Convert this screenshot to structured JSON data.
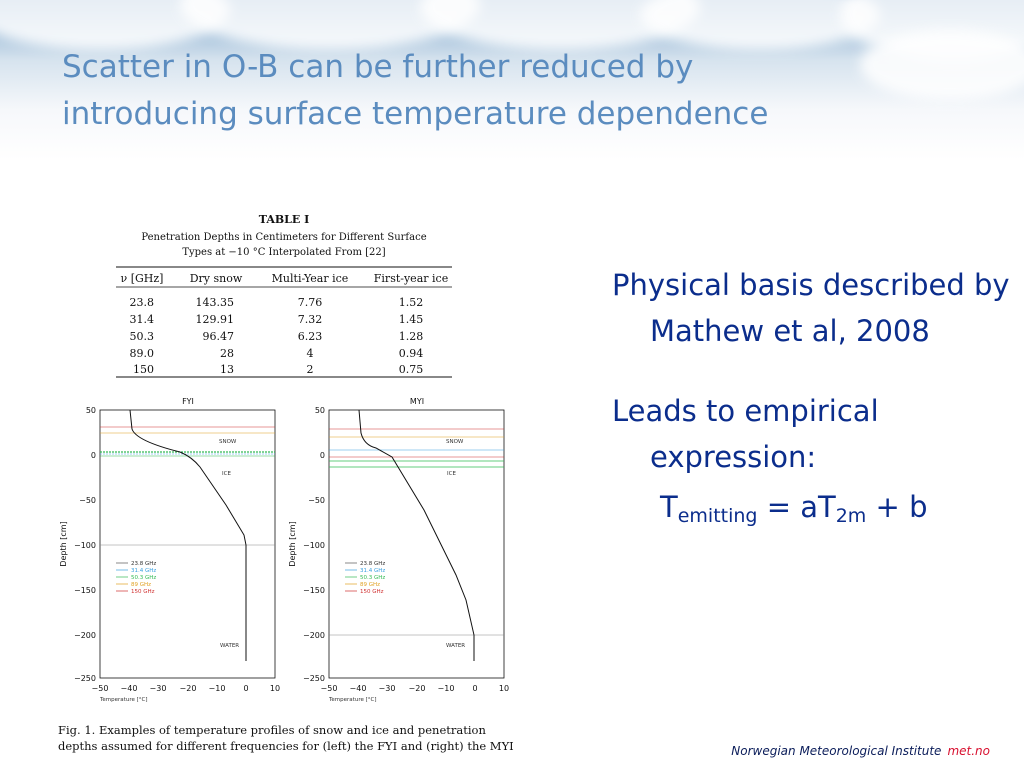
{
  "slide": {
    "title": "Scatter in O-B can be further reduced by introducing surface temperature dependence",
    "bullets": {
      "b1": "Physical basis described by Mathew et al, 2008",
      "b2": "Leads to empirical expression:",
      "formula": {
        "T": "T",
        "sub_emitting": "emitting",
        "eq": " = aT",
        "sub_2m": "2m",
        "tail": " + b"
      }
    },
    "footer": {
      "institute": "Norwegian Meteorological Institute",
      "brand": "met.no"
    }
  },
  "figure": {
    "table": {
      "title": "TABLE  I",
      "caption_line1": "Penetration Depths in Centimeters for Different Surface",
      "caption_line2": "Types at −10 °C Interpolated From [22]",
      "headers": [
        "ν [GHz]",
        "Dry snow",
        "Multi-Year ice",
        "First-year ice"
      ],
      "rows": [
        [
          "23.8",
          "143.35",
          "7.76",
          "1.52"
        ],
        [
          "31.4",
          "129.91",
          "7.32",
          "1.45"
        ],
        [
          "50.3",
          "96.47",
          "6.23",
          "1.28"
        ],
        [
          "89.0",
          "28",
          "4",
          "0.94"
        ],
        [
          "150",
          "13",
          "2",
          "0.75"
        ]
      ]
    },
    "plots": {
      "left_title": "FYI",
      "right_title": "MYI",
      "y_label": "Depth  [cm]",
      "x_label": "Temperature  [°C]",
      "y_ticks": [
        "50",
        "0",
        "−50",
        "−100",
        "−150",
        "−200",
        "−250"
      ],
      "x_ticks": [
        "−50",
        "−40",
        "−30",
        "−20",
        "−10",
        "0",
        "10"
      ],
      "region_snow": "SNOW",
      "region_ice": "ICE",
      "region_water": "WATER",
      "legend": [
        {
          "label": "23.8 GHz",
          "color": "#555555"
        },
        {
          "label": "31.4 GHz",
          "color": "#3aa0e0"
        },
        {
          "label": "50.3 GHz",
          "color": "#33bb55"
        },
        {
          "label": "89 GHz",
          "color": "#e0a020"
        },
        {
          "label": "150 GHz",
          "color": "#d03030"
        }
      ]
    },
    "fig_caption_line1": "Fig. 1.   Examples of temperature profiles of snow and ice and penetration",
    "fig_caption_line2": "depths assumed for different frequencies for (left) the FYI and (right) the MYI."
  }
}
